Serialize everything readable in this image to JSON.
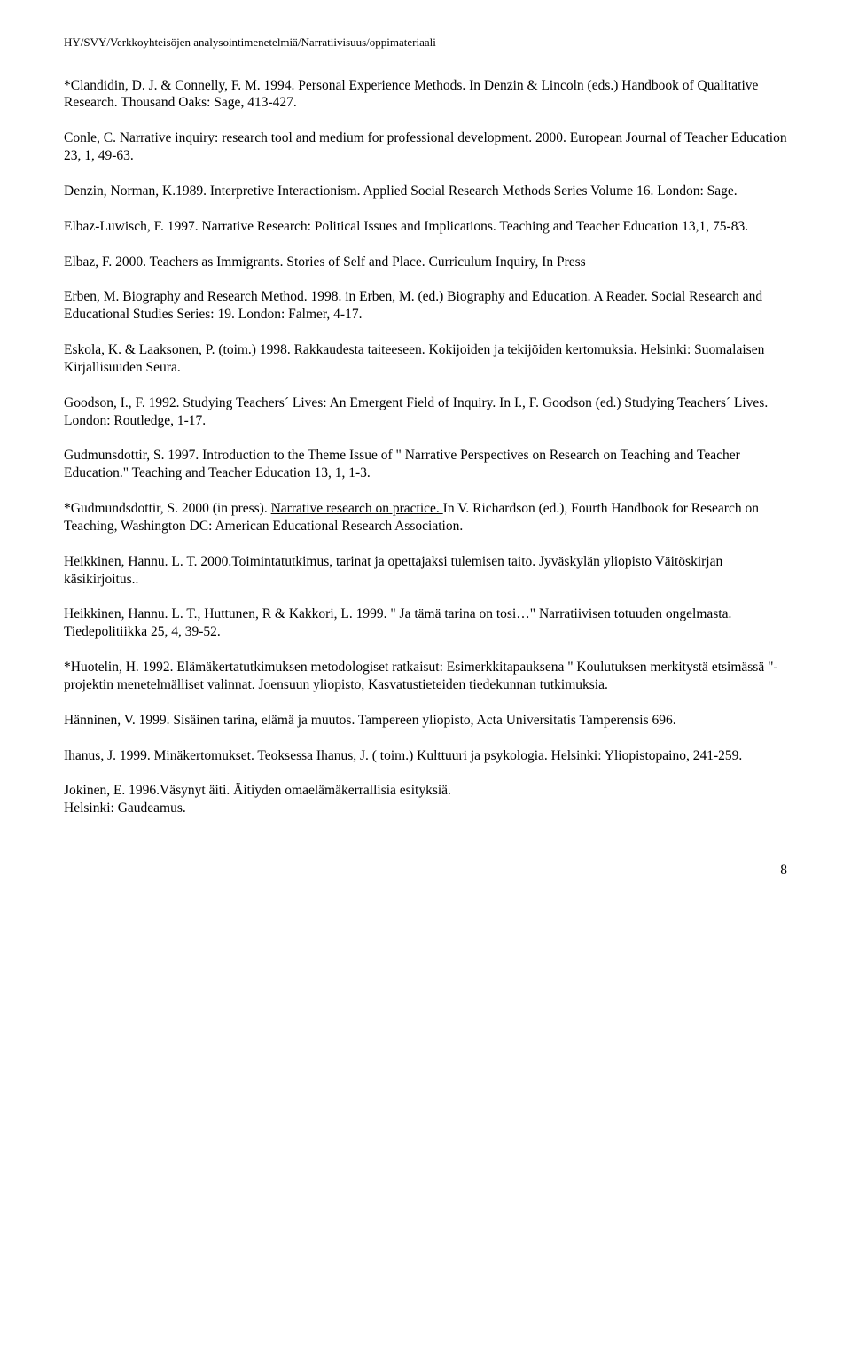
{
  "header": "HY/SVY/Verkkoyhteisöjen analysointimenetelmiä/Narratiivisuus/oppimateriaali",
  "refs": {
    "r1": "*Clandidin, D. J. & Connelly, F. M. 1994. Personal Experience Methods. In Denzin & Lincoln (eds.) Handbook of Qualitative Research. Thousand Oaks: Sage, 413-427.",
    "r2": "Conle, C. Narrative inquiry: research tool and medium for professional development. 2000. European Journal of Teacher Education 23, 1, 49-63.",
    "r3": "Denzin, Norman, K.1989. Interpretive Interactionism. Applied Social Research Methods Series Volume 16. London: Sage.",
    "r4": "Elbaz-Luwisch, F. 1997. Narrative Research: Political Issues and Implications. Teaching and Teacher Education 13,1, 75-83.",
    "r5": "Elbaz, F. 2000. Teachers as Immigrants. Stories of Self and Place. Curriculum Inquiry,  In Press",
    "r6": "Erben, M. Biography and Research Method. 1998. in Erben, M. (ed.) Biography and Education. A Reader. Social Research and Educational Studies Series: 19. London: Falmer, 4-17.",
    "r7": "Eskola, K. & Laaksonen, P. (toim.) 1998. Rakkaudesta taiteeseen. Kokijoiden ja tekijöiden kertomuksia. Helsinki: Suomalaisen Kirjallisuuden Seura.",
    "r8": "Goodson, I., F. 1992. Studying Teachers´ Lives: An Emergent Field of Inquiry. In I., F. Goodson (ed.) Studying Teachers´ Lives. London: Routledge, 1-17.",
    "r9": "Gudmunsdottir, S.  1997. Introduction to the Theme Issue of \" Narrative Perspectives on Research on Teaching and Teacher Education.\" Teaching and Teacher Education 13, 1, 1-3.",
    "r10a": "*Gudmundsdottir, S. 2000 (in press). ",
    "r10link": "Narrative research on practice. ",
    "r10b": " In V. Richardson (ed.), Fourth Handbook for Research on Teaching, Washington DC: American Educational Research Association.",
    "r11": "Heikkinen, Hannu. L. T. 2000.Toimintatutkimus, tarinat ja opettajaksi tulemisen taito. Jyväskylän yliopisto Väitöskirjan käsikirjoitus..",
    "r12": "Heikkinen, Hannu. L. T., Huttunen, R & Kakkori, L. 1999. \" Ja tämä tarina on tosi…\" Narratiivisen totuuden ongelmasta. Tiedepolitiikka 25, 4, 39-52.",
    "r13": "*Huotelin, H. 1992. Elämäkertatutkimuksen metodologiset ratkaisut: Esimerkkitapauksena \" Koulutuksen merkitystä etsimässä \"-projektin menetelmälliset valinnat. Joensuun yliopisto, Kasvatustieteiden tiedekunnan tutkimuksia.",
    "r14": "Hänninen, V. 1999. Sisäinen tarina, elämä ja muutos. Tampereen yliopisto, Acta Universitatis Tamperensis 696.",
    "r15": "Ihanus, J. 1999. Minäkertomukset. Teoksessa Ihanus, J. ( toim.) Kulttuuri ja psykologia. Helsinki: Yliopistopaino, 241-259.",
    "r16": "Jokinen, E. 1996.Väsynyt äiti. Äitiyden omaelämäkerrallisia esityksiä.\nHelsinki: Gaudeamus."
  },
  "pagenum": "8"
}
